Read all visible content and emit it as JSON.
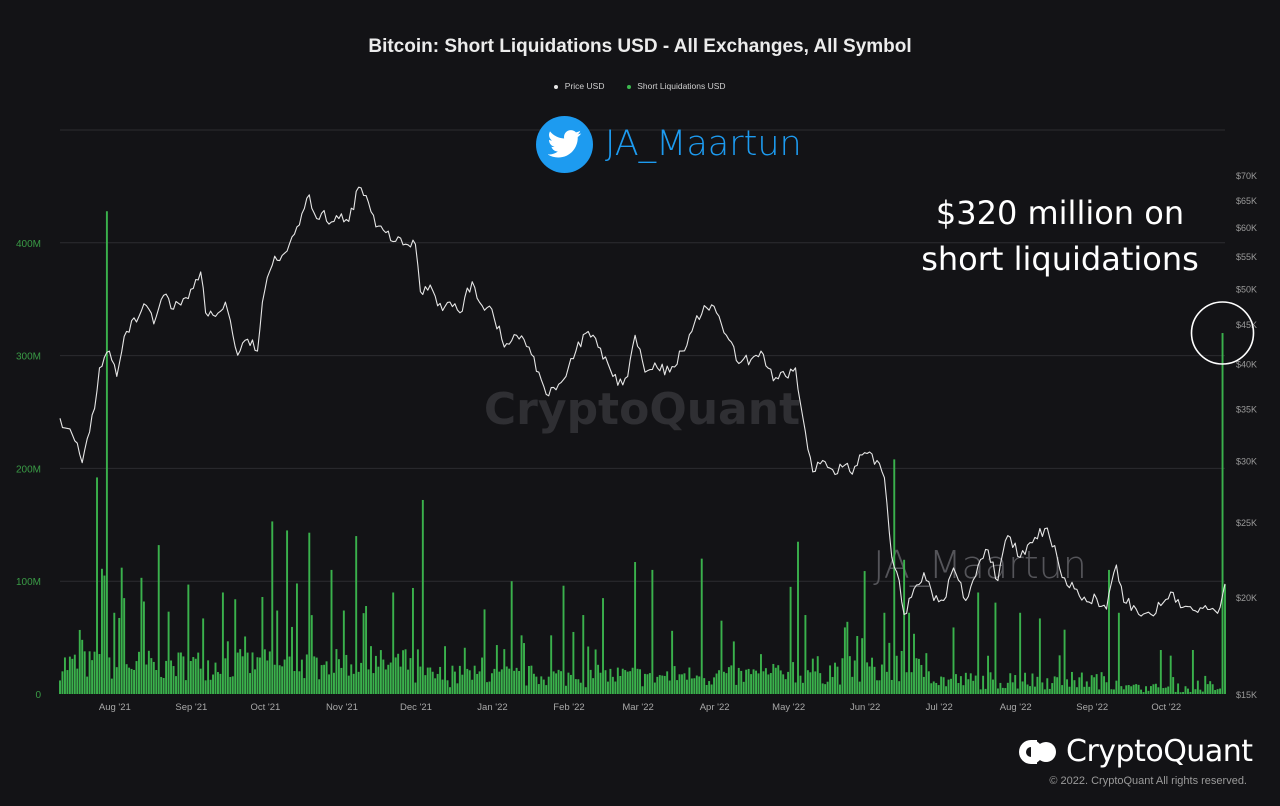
{
  "chart_data": {
    "type": "bar+line",
    "title": "Bitcoin: Short Liquidations USD - All Exchanges, All Symbol",
    "legend": [
      {
        "label": "Price USD",
        "color": "#e6e6e6"
      },
      {
        "label": "Short Liquidations USD",
        "color": "#3cb94f"
      }
    ],
    "x_range": [
      "2021-07-11",
      "2022-10-26"
    ],
    "x_ticks": [
      {
        "date": "2021-08-01",
        "label": "Aug '21"
      },
      {
        "date": "2021-09-01",
        "label": "Sep '21"
      },
      {
        "date": "2021-10-01",
        "label": "Oct '21"
      },
      {
        "date": "2021-11-01",
        "label": "Nov '21"
      },
      {
        "date": "2021-12-01",
        "label": "Dec '21"
      },
      {
        "date": "2022-01-01",
        "label": "Jan '22"
      },
      {
        "date": "2022-02-01",
        "label": "Feb '22"
      },
      {
        "date": "2022-03-01",
        "label": "Mar '22"
      },
      {
        "date": "2022-04-01",
        "label": "Apr '22"
      },
      {
        "date": "2022-05-01",
        "label": "May '22"
      },
      {
        "date": "2022-06-01",
        "label": "Jun '22"
      },
      {
        "date": "2022-07-01",
        "label": "Jul '22"
      },
      {
        "date": "2022-08-01",
        "label": "Aug '22"
      },
      {
        "date": "2022-09-01",
        "label": "Sep '22"
      },
      {
        "date": "2022-10-01",
        "label": "Oct '22"
      }
    ],
    "y_left": {
      "label": "Short Liquidations USD",
      "range": [
        0,
        500000000
      ],
      "ticks": [
        {
          "value": 0,
          "label": "0"
        },
        {
          "value": 100000000,
          "label": "100M"
        },
        {
          "value": 200000000,
          "label": "200M"
        },
        {
          "value": 300000000,
          "label": "300M"
        },
        {
          "value": 400000000,
          "label": "400M"
        }
      ]
    },
    "y_right": {
      "label": "Price USD",
      "scale": "log",
      "range": [
        15000,
        80000
      ],
      "ticks": [
        {
          "value": 15000,
          "label": "$15K"
        },
        {
          "value": 20000,
          "label": "$20K"
        },
        {
          "value": 25000,
          "label": "$25K"
        },
        {
          "value": 30000,
          "label": "$30K"
        },
        {
          "value": 35000,
          "label": "$35K"
        },
        {
          "value": 40000,
          "label": "$40K"
        },
        {
          "value": 45000,
          "label": "$45K"
        },
        {
          "value": 50000,
          "label": "$50K"
        },
        {
          "value": 55000,
          "label": "$55K"
        },
        {
          "value": 60000,
          "label": "$60K"
        },
        {
          "value": 65000,
          "label": "$65K"
        },
        {
          "value": 70000,
          "label": "$70K"
        }
      ]
    },
    "grid": true,
    "price_series": [
      [
        "2021-07-11",
        34000
      ],
      [
        "2021-07-14",
        33000
      ],
      [
        "2021-07-17",
        31800
      ],
      [
        "2021-07-20",
        29800
      ],
      [
        "2021-07-22",
        32000
      ],
      [
        "2021-07-25",
        35000
      ],
      [
        "2021-07-27",
        39500
      ],
      [
        "2021-07-31",
        41500
      ],
      [
        "2021-08-03",
        38500
      ],
      [
        "2021-08-07",
        44000
      ],
      [
        "2021-08-12",
        46000
      ],
      [
        "2021-08-15",
        47500
      ],
      [
        "2021-08-18",
        45000
      ],
      [
        "2021-08-22",
        49000
      ],
      [
        "2021-08-26",
        47000
      ],
      [
        "2021-08-30",
        48500
      ],
      [
        "2021-09-03",
        50000
      ],
      [
        "2021-09-06",
        52500
      ],
      [
        "2021-09-08",
        46500
      ],
      [
        "2021-09-12",
        46000
      ],
      [
        "2021-09-16",
        48000
      ],
      [
        "2021-09-21",
        41000
      ],
      [
        "2021-09-25",
        43000
      ],
      [
        "2021-09-29",
        41500
      ],
      [
        "2021-10-01",
        48000
      ],
      [
        "2021-10-06",
        55000
      ],
      [
        "2021-10-10",
        55500
      ],
      [
        "2021-10-15",
        60000
      ],
      [
        "2021-10-20",
        66000
      ],
      [
        "2021-10-23",
        61500
      ],
      [
        "2021-10-26",
        63000
      ],
      [
        "2021-10-28",
        60500
      ],
      [
        "2021-11-01",
        61500
      ],
      [
        "2021-11-05",
        61000
      ],
      [
        "2021-11-09",
        67500
      ],
      [
        "2021-11-13",
        64500
      ],
      [
        "2021-11-16",
        60000
      ],
      [
        "2021-11-20",
        59000
      ],
      [
        "2021-11-24",
        57500
      ],
      [
        "2021-11-28",
        57000
      ],
      [
        "2021-12-02",
        57000
      ],
      [
        "2021-12-04",
        49500
      ],
      [
        "2021-12-08",
        50500
      ],
      [
        "2021-12-13",
        46800
      ],
      [
        "2021-12-16",
        48000
      ],
      [
        "2021-12-20",
        46500
      ],
      [
        "2021-12-25",
        51000
      ],
      [
        "2021-12-29",
        47500
      ],
      [
        "2022-01-02",
        47000
      ],
      [
        "2022-01-07",
        42000
      ],
      [
        "2022-01-12",
        43500
      ],
      [
        "2022-01-17",
        42000
      ],
      [
        "2022-01-21",
        39000
      ],
      [
        "2022-01-24",
        36500
      ],
      [
        "2022-01-28",
        37000
      ],
      [
        "2022-02-01",
        38500
      ],
      [
        "2022-02-05",
        41500
      ],
      [
        "2022-02-10",
        44000
      ],
      [
        "2022-02-14",
        42000
      ],
      [
        "2022-02-18",
        40000
      ],
      [
        "2022-02-22",
        37500
      ],
      [
        "2022-02-26",
        38500
      ],
      [
        "2022-03-01",
        43500
      ],
      [
        "2022-03-05",
        39000
      ],
      [
        "2022-03-10",
        39500
      ],
      [
        "2022-03-15",
        39000
      ],
      [
        "2022-03-20",
        41500
      ],
      [
        "2022-03-24",
        44000
      ],
      [
        "2022-03-29",
        47500
      ],
      [
        "2022-04-03",
        46500
      ],
      [
        "2022-04-07",
        43500
      ],
      [
        "2022-04-12",
        40000
      ],
      [
        "2022-04-17",
        40500
      ],
      [
        "2022-04-21",
        41500
      ],
      [
        "2022-04-26",
        38000
      ],
      [
        "2022-05-01",
        38500
      ],
      [
        "2022-05-05",
        39500
      ],
      [
        "2022-05-07",
        35500
      ],
      [
        "2022-05-10",
        31000
      ],
      [
        "2022-05-12",
        29000
      ],
      [
        "2022-05-16",
        30000
      ],
      [
        "2022-05-20",
        29200
      ],
      [
        "2022-05-25",
        29600
      ],
      [
        "2022-05-28",
        28800
      ],
      [
        "2022-06-01",
        30500
      ],
      [
        "2022-06-07",
        30000
      ],
      [
        "2022-06-10",
        28500
      ],
      [
        "2022-06-13",
        22500
      ],
      [
        "2022-06-16",
        21000
      ],
      [
        "2022-06-18",
        19000
      ],
      [
        "2022-06-22",
        20500
      ],
      [
        "2022-06-26",
        21500
      ],
      [
        "2022-06-30",
        19800
      ],
      [
        "2022-07-04",
        19800
      ],
      [
        "2022-07-08",
        21800
      ],
      [
        "2022-07-13",
        19800
      ],
      [
        "2022-07-18",
        22000
      ],
      [
        "2022-07-22",
        23000
      ],
      [
        "2022-07-26",
        21000
      ],
      [
        "2022-07-30",
        24000
      ],
      [
        "2022-08-04",
        22500
      ],
      [
        "2022-08-09",
        23500
      ],
      [
        "2022-08-14",
        24500
      ],
      [
        "2022-08-18",
        23300
      ],
      [
        "2022-08-21",
        21200
      ],
      [
        "2022-08-26",
        20500
      ],
      [
        "2022-08-30",
        20000
      ],
      [
        "2022-09-04",
        19900
      ],
      [
        "2022-09-08",
        19300
      ],
      [
        "2022-09-12",
        22000
      ],
      [
        "2022-09-15",
        19700
      ],
      [
        "2022-09-19",
        19500
      ],
      [
        "2022-09-22",
        18900
      ],
      [
        "2022-09-26",
        19000
      ],
      [
        "2022-09-30",
        19500
      ],
      [
        "2022-10-04",
        20300
      ],
      [
        "2022-10-09",
        19400
      ],
      [
        "2022-10-14",
        19200
      ],
      [
        "2022-10-18",
        19500
      ],
      [
        "2022-10-22",
        19200
      ],
      [
        "2022-10-24",
        19400
      ],
      [
        "2022-10-25",
        20100
      ],
      [
        "2022-10-26",
        20800
      ]
    ],
    "liquidation_spikes": [
      [
        "2021-07-20",
        48000000
      ],
      [
        "2021-07-26",
        192000000
      ],
      [
        "2021-07-28",
        111000000
      ],
      [
        "2021-07-29",
        105000000
      ],
      [
        "2021-07-30",
        428000000
      ],
      [
        "2021-08-02",
        72000000
      ],
      [
        "2021-08-05",
        112000000
      ],
      [
        "2021-08-06",
        85000000
      ],
      [
        "2021-08-13",
        103000000
      ],
      [
        "2021-08-14",
        82000000
      ],
      [
        "2021-08-20",
        132000000
      ],
      [
        "2021-08-24",
        73000000
      ],
      [
        "2021-09-01",
        97000000
      ],
      [
        "2021-09-07",
        67000000
      ],
      [
        "2021-09-15",
        90000000
      ],
      [
        "2021-09-20",
        84000000
      ],
      [
        "2021-09-24",
        51000000
      ],
      [
        "2021-10-01",
        86000000
      ],
      [
        "2021-10-05",
        153000000
      ],
      [
        "2021-10-07",
        74000000
      ],
      [
        "2021-10-11",
        145000000
      ],
      [
        "2021-10-15",
        98000000
      ],
      [
        "2021-10-20",
        143000000
      ],
      [
        "2021-10-29",
        110000000
      ],
      [
        "2021-11-03",
        74000000
      ],
      [
        "2021-11-08",
        140000000
      ],
      [
        "2021-11-12",
        78000000
      ],
      [
        "2021-11-23",
        90000000
      ],
      [
        "2021-12-01",
        94000000
      ],
      [
        "2021-12-05",
        172000000
      ],
      [
        "2021-12-22",
        41000000
      ],
      [
        "2021-12-30",
        75000000
      ],
      [
        "2022-01-10",
        100000000
      ],
      [
        "2022-01-14",
        52000000
      ],
      [
        "2022-01-26",
        52000000
      ],
      [
        "2022-01-31",
        96000000
      ],
      [
        "2022-02-04",
        55000000
      ],
      [
        "2022-02-08",
        70000000
      ],
      [
        "2022-02-16",
        85000000
      ],
      [
        "2022-03-01",
        117000000
      ],
      [
        "2022-03-08",
        110000000
      ],
      [
        "2022-03-16",
        56000000
      ],
      [
        "2022-03-28",
        120000000
      ],
      [
        "2022-04-05",
        65000000
      ],
      [
        "2022-05-03",
        95000000
      ],
      [
        "2022-05-06",
        135000000
      ],
      [
        "2022-05-09",
        70000000
      ],
      [
        "2022-05-26",
        64000000
      ],
      [
        "2022-06-02",
        109000000
      ],
      [
        "2022-06-10",
        72000000
      ],
      [
        "2022-06-14",
        208000000
      ],
      [
        "2022-06-18",
        119000000
      ],
      [
        "2022-06-20",
        72000000
      ],
      [
        "2022-07-08",
        59000000
      ],
      [
        "2022-07-18",
        90000000
      ],
      [
        "2022-07-25",
        81000000
      ],
      [
        "2022-08-04",
        72000000
      ],
      [
        "2022-08-12",
        67000000
      ],
      [
        "2022-08-22",
        57000000
      ],
      [
        "2022-09-09",
        110000000
      ],
      [
        "2022-09-13",
        72000000
      ],
      [
        "2022-09-30",
        39000000
      ],
      [
        "2022-10-04",
        34000000
      ],
      [
        "2022-10-13",
        39000000
      ],
      [
        "2022-10-25",
        320000000
      ],
      [
        "2022-10-26",
        97000000
      ]
    ],
    "annotation": {
      "lines": [
        "$320 million on",
        "short liquidations"
      ],
      "target_date": "2022-10-25",
      "target_value": 320000000
    },
    "watermark": "CryptoQuant"
  },
  "twitter": {
    "handle": "JA_Maartun",
    "icon": "twitter-bird-icon",
    "color": "#1d9bf0"
  },
  "watermark_handle": "JA_Maartun",
  "branding": {
    "logo_text": "CryptoQuant",
    "copyright": "© 2022. CryptoQuant All rights reserved."
  },
  "colors": {
    "background": "#131316",
    "bars": "#3cb94f",
    "price_line": "#e6e6e6",
    "grid": "#2c2c30",
    "axis_text_left": "#3a9b46",
    "axis_text_right": "#9a9a9a",
    "annotation_circle": "#ffffff"
  }
}
